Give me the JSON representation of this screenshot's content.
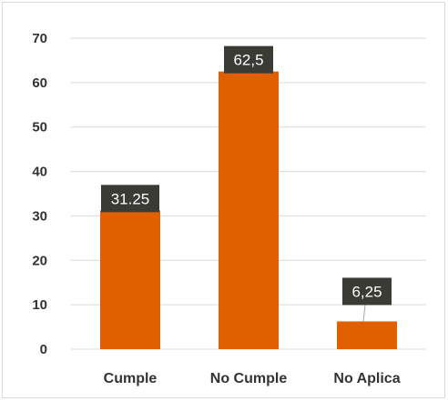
{
  "chart_data": {
    "type": "bar",
    "categories": [
      "Cumple",
      "No Cumple",
      "No Aplica"
    ],
    "values": [
      31.25,
      62.5,
      6.25
    ],
    "data_labels": [
      "31.25",
      "62,5",
      "6,25"
    ],
    "title": "",
    "xlabel": "",
    "ylabel": "",
    "ylim": [
      0,
      70
    ],
    "yticks": [
      "0",
      "10",
      "20",
      "30",
      "40",
      "50",
      "60",
      "70"
    ],
    "grid": true,
    "legend": "none",
    "colors": {
      "bar": "#e06000",
      "label_bg": "#3b3b36",
      "grid": "#d9d9d9"
    }
  }
}
